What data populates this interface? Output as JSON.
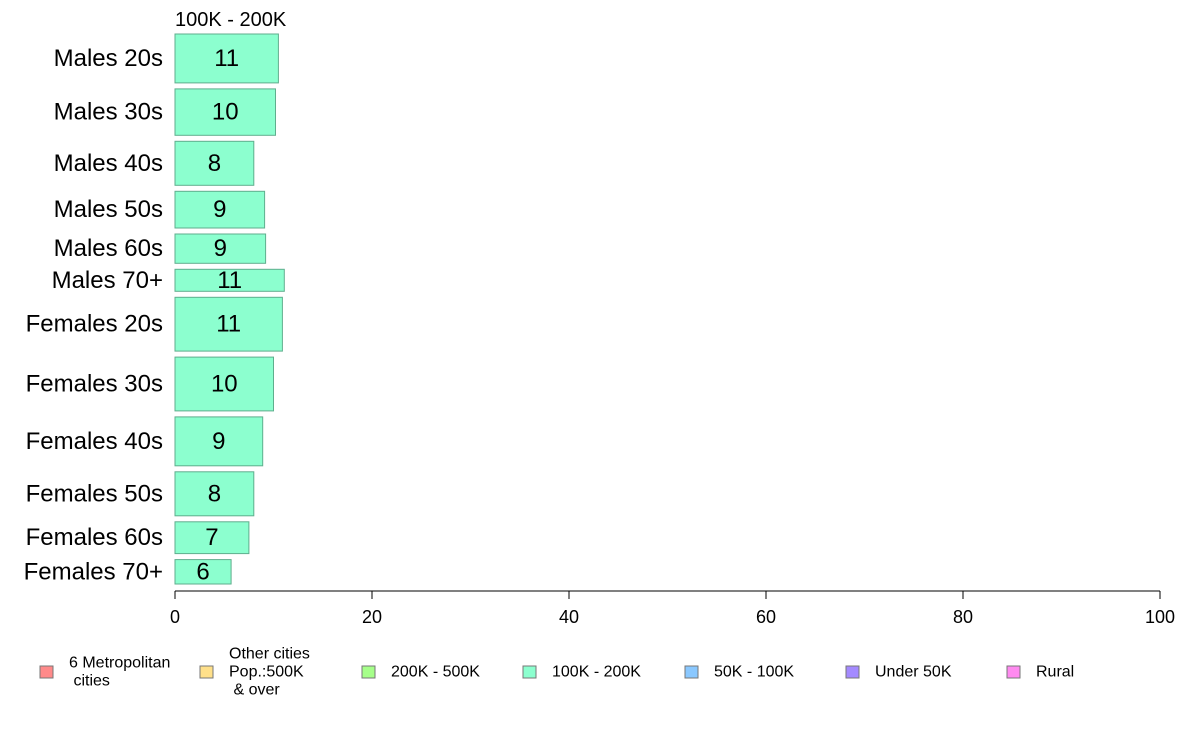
{
  "chart_data": {
    "type": "bar",
    "orientation": "horizontal",
    "panel_title": "100K - 200K",
    "categories": [
      "Males 20s",
      "Males 30s",
      "Males 40s",
      "Males 50s",
      "Males 60s",
      "Males 70+",
      "Females 20s",
      "Females 30s",
      "Females 40s",
      "Females 50s",
      "Females 60s",
      "Females 70+"
    ],
    "values": [
      10.5,
      10.2,
      8.0,
      9.1,
      9.2,
      11.1,
      10.9,
      10.0,
      8.9,
      8.0,
      7.5,
      5.7
    ],
    "value_labels": [
      "11",
      "10",
      "8",
      "9",
      "9",
      "11",
      "11",
      "10",
      "9",
      "8",
      "7",
      "6"
    ],
    "bar_weights": [
      1.0,
      0.95,
      0.9,
      0.75,
      0.6,
      0.45,
      1.1,
      1.1,
      1.0,
      0.9,
      0.65,
      0.5
    ],
    "xlim": [
      0,
      100
    ],
    "xticks": [
      0,
      20,
      40,
      60,
      80,
      100
    ],
    "xlabel": "",
    "ylabel": "",
    "grid": false,
    "bar_color": "#8cffcf",
    "bar_edge": "#5fae8d",
    "legend": {
      "placement": "bottom",
      "items": [
        {
          "label": "6 Metropolitan\n cities",
          "color": "#ff8a8a"
        },
        {
          "label": "Other cities\nPop.:500K\n & over",
          "color": "#ffe08a"
        },
        {
          "label": "200K - 500K",
          "color": "#a6ff8a"
        },
        {
          "label": "100K - 200K",
          "color": "#8cffcf"
        },
        {
          "label": "50K - 100K",
          "color": "#8ac8ff"
        },
        {
          "label": "Under 50K",
          "color": "#a48aff"
        },
        {
          "label": "Rural",
          "color": "#ff8af0"
        }
      ]
    }
  }
}
